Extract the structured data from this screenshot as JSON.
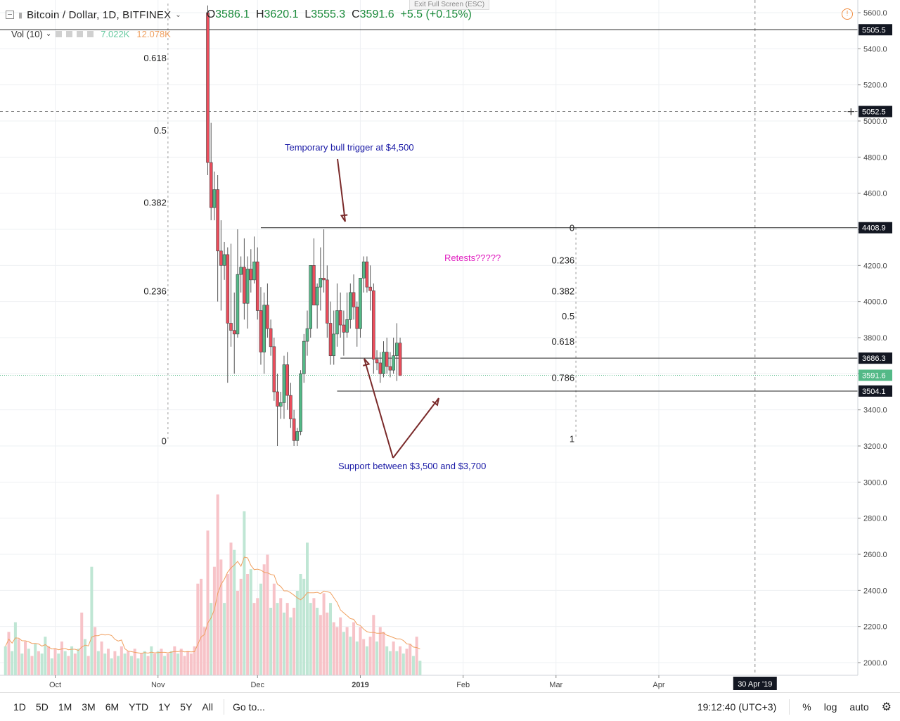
{
  "header": {
    "symbol": "Bitcoin / Dollar, 1D, BITFINEX",
    "open_label": "O",
    "open": "3586.1",
    "high_label": "H",
    "high": "3620.1",
    "low_label": "L",
    "low": "3555.3",
    "close_label": "C",
    "close": "3591.6",
    "change": "+5.5 (+0.15%)",
    "dropdown_icon": "chevron-down-icon",
    "collapse_icon": "minimize-icon"
  },
  "volume_legend": {
    "label": "Vol (10)",
    "value1": "7.022K",
    "value2": "12.078K",
    "icons": [
      "eye-icon",
      "gear-icon",
      "plus-icon",
      "close-icon"
    ]
  },
  "exit_fullscreen": "Exit Full Screen (ESC)",
  "alert_icon": "clock-alert-icon",
  "bottom_bar": {
    "timeframes": [
      "1D",
      "5D",
      "1M",
      "3M",
      "6M",
      "YTD",
      "1Y",
      "5Y",
      "All"
    ],
    "goto": "Go to...",
    "time": "19:12:40 (UTC+3)",
    "percent": "%",
    "log": "log",
    "auto": "auto",
    "settings_icon": "gear-icon"
  },
  "chart_data": {
    "type": "candlestick",
    "title": "Bitcoin / Dollar, 1D, BITFINEX",
    "colors": {
      "up": "#53b987",
      "down": "#eb4d5c",
      "annotation_blue": "#1a1aa6",
      "annotation_magenta": "#e020c0",
      "arrow": "#7a2a2a",
      "vol_ma": "#f0a060"
    },
    "y_axis": {
      "range": [
        1900,
        5700
      ],
      "ticks": [
        2000,
        2200,
        2400,
        2600,
        2800,
        3000,
        3200,
        3400,
        3600,
        3800,
        4000,
        4200,
        4400,
        4600,
        4800,
        5000,
        5200,
        5400,
        5600
      ]
    },
    "x_axis": {
      "labels": [
        "Oct",
        "Nov",
        "Dec",
        "2019",
        "Feb",
        "Mar",
        "Apr"
      ],
      "label_days": [
        15,
        46,
        76,
        107,
        138,
        166,
        197
      ],
      "date_badge": "30 Apr '19",
      "date_badge_day": 226
    },
    "price_labels": [
      {
        "value": 5505.5,
        "text": "5505.5",
        "style": "dark"
      },
      {
        "value": 5052.5,
        "text": "5052.5",
        "style": "dark"
      },
      {
        "value": 4408.9,
        "text": "4408.9",
        "style": "dark"
      },
      {
        "value": 3686.3,
        "text": "3686.3",
        "style": "dark"
      },
      {
        "value": 3591.6,
        "text": "3591.6",
        "style": "green"
      },
      {
        "value": 3504.1,
        "text": "3504.1",
        "style": "dark"
      }
    ],
    "candles_start_day": 61,
    "candles": [
      [
        5600,
        5640,
        4700,
        4770
      ],
      [
        4770,
        4990,
        4450,
        4520
      ],
      [
        4520,
        4720,
        4450,
        4620
      ],
      [
        4620,
        4700,
        4000,
        4280
      ],
      [
        4280,
        4450,
        3950,
        4200
      ],
      [
        4200,
        4330,
        4120,
        4260
      ],
      [
        4260,
        4300,
        3550,
        3880
      ],
      [
        3880,
        4320,
        3750,
        3840
      ],
      [
        3840,
        4050,
        3600,
        3820
      ],
      [
        3820,
        4400,
        3800,
        4150
      ],
      [
        4150,
        4250,
        4050,
        4190
      ],
      [
        4190,
        4350,
        3900,
        3990
      ],
      [
        3990,
        4250,
        3850,
        4180
      ],
      [
        4180,
        4290,
        4050,
        4120
      ],
      [
        4120,
        4360,
        4100,
        4220
      ],
      [
        4220,
        4300,
        3900,
        3950
      ],
      [
        3950,
        4080,
        3650,
        3720
      ],
      [
        3720,
        4050,
        3600,
        3980
      ],
      [
        3980,
        4100,
        3800,
        3850
      ],
      [
        3850,
        3900,
        3700,
        3750
      ],
      [
        3750,
        3800,
        3450,
        3500
      ],
      [
        3500,
        3600,
        3200,
        3420
      ],
      [
        3420,
        3500,
        3350,
        3440
      ],
      [
        3440,
        3700,
        3350,
        3650
      ],
      [
        3650,
        3720,
        3400,
        3480
      ],
      [
        3480,
        3550,
        3300,
        3350
      ],
      [
        3350,
        3400,
        3200,
        3230
      ],
      [
        3230,
        3300,
        3200,
        3280
      ],
      [
        3280,
        3620,
        3260,
        3600
      ],
      [
        3600,
        3820,
        3550,
        3780
      ],
      [
        3780,
        3950,
        3700,
        3850
      ],
      [
        3850,
        4200,
        3800,
        4200
      ],
      [
        4200,
        4350,
        4000,
        3980
      ],
      [
        3980,
        4100,
        3850,
        4080
      ],
      [
        4080,
        4300,
        3950,
        4130
      ],
      [
        4130,
        4400,
        4050,
        4120
      ],
      [
        4120,
        4200,
        3800,
        3880
      ],
      [
        3880,
        4000,
        3650,
        3700
      ],
      [
        3700,
        3950,
        3650,
        3820
      ],
      [
        3820,
        4100,
        3750,
        3950
      ],
      [
        3950,
        4050,
        3800,
        3870
      ],
      [
        3870,
        3950,
        3700,
        3830
      ],
      [
        3830,
        4050,
        3800,
        3900
      ],
      [
        3900,
        4100,
        3850,
        4050
      ],
      [
        4050,
        4150,
        3900,
        3970
      ],
      [
        3970,
        4000,
        3750,
        3850
      ],
      [
        3850,
        4130,
        3800,
        4130
      ],
      [
        4130,
        4250,
        4050,
        4220
      ],
      [
        4220,
        4250,
        4050,
        4080
      ],
      [
        4080,
        4200,
        3950,
        4060
      ],
      [
        4060,
        4100,
        3600,
        3680
      ],
      [
        3680,
        3730,
        3620,
        3660
      ],
      [
        3660,
        3720,
        3550,
        3600
      ],
      [
        3600,
        3780,
        3580,
        3720
      ],
      [
        3720,
        3800,
        3600,
        3640
      ],
      [
        3640,
        3720,
        3580,
        3620
      ],
      [
        3620,
        3800,
        3600,
        3700
      ],
      [
        3700,
        3880,
        3560,
        3770
      ],
      [
        3770,
        3800,
        3600,
        3590
      ]
    ],
    "volume_start_day": 0,
    "volumes": [
      12,
      18,
      10,
      22,
      15,
      9,
      14,
      11,
      8,
      13,
      10,
      9,
      16,
      12,
      7,
      11,
      9,
      14,
      10,
      8,
      12,
      9,
      11,
      26,
      15,
      8,
      45,
      20,
      10,
      14,
      9,
      11,
      7,
      10,
      8,
      12,
      9,
      10,
      8,
      11,
      7,
      9,
      10,
      8,
      12,
      9,
      10,
      11,
      8,
      9,
      10,
      12,
      9,
      11,
      8,
      10,
      9,
      12,
      38,
      40,
      20,
      60,
      30,
      45,
      75,
      48,
      30,
      42,
      55,
      52,
      35,
      40,
      68,
      42,
      44,
      30,
      32,
      38,
      46,
      50,
      28,
      38,
      30,
      32,
      26,
      30,
      24,
      28,
      35,
      42,
      40,
      55,
      30,
      32,
      28,
      25,
      34,
      26,
      30,
      22,
      20,
      24,
      18,
      20,
      16,
      22,
      14,
      20,
      15,
      12,
      16,
      25,
      14,
      20,
      18,
      12,
      10,
      14,
      10,
      12,
      9,
      11,
      13,
      8,
      16,
      6
    ],
    "volume_up": [
      true,
      false,
      true,
      true,
      false,
      true,
      false,
      true,
      false,
      true,
      false,
      true,
      true,
      false,
      true,
      false,
      true,
      false,
      true,
      false,
      true,
      false,
      true,
      false,
      true,
      false,
      true,
      false,
      true,
      false,
      true,
      false,
      true,
      false,
      true,
      false,
      true,
      false,
      true,
      false,
      true,
      false,
      true,
      false,
      true,
      false,
      true,
      false,
      true,
      false,
      true,
      false,
      true,
      false,
      false,
      false,
      false,
      false,
      false,
      false,
      false,
      false,
      true,
      false,
      false,
      false,
      true,
      false,
      false,
      true,
      false,
      false,
      true,
      false,
      true,
      false,
      false,
      true,
      false,
      false,
      true,
      false,
      true,
      false,
      true,
      false,
      true,
      false,
      true,
      true,
      true,
      true,
      true,
      false,
      true,
      false,
      false,
      false,
      true,
      false,
      false,
      false,
      true,
      false,
      true,
      false,
      true,
      false,
      false,
      true,
      false,
      false,
      true,
      false,
      false,
      true,
      true,
      false,
      true,
      false,
      true,
      false,
      false,
      true,
      false,
      true
    ],
    "fib_left": {
      "levels": [
        {
          "label": "0.618",
          "value": 5350
        },
        {
          "label": "0.5",
          "value": 4950
        },
        {
          "label": "0.382",
          "value": 4550
        },
        {
          "label": "0.236",
          "value": 4060
        },
        {
          "label": "0",
          "value": 3230
        }
      ]
    },
    "fib_right": {
      "levels": [
        {
          "label": "0",
          "value": 4408.9
        },
        {
          "label": "0.236",
          "value": 4230
        },
        {
          "label": "0.382",
          "value": 4060
        },
        {
          "label": "0.5",
          "value": 3920
        },
        {
          "label": "0.618",
          "value": 3780
        },
        {
          "label": "0.786",
          "value": 3580
        },
        {
          "label": "1",
          "value": 3240
        }
      ]
    },
    "annotations": [
      {
        "text": "Temporary bull trigger at $4,500",
        "color": "blue"
      },
      {
        "text": "Retests?????",
        "color": "magenta"
      },
      {
        "text": "Support between $3,500 and $3,700",
        "color": "blue"
      }
    ]
  }
}
